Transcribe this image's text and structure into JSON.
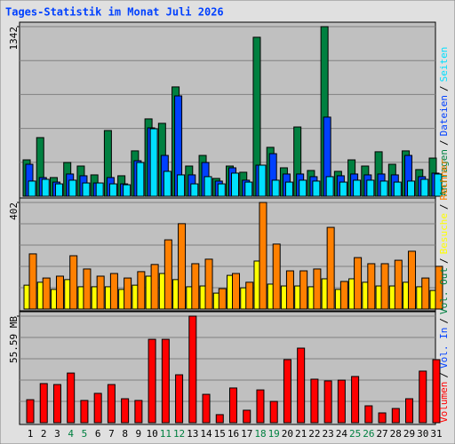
{
  "title": "Tages-Statistik im Monat Juli 2026",
  "legend_separator": "/",
  "categories": [
    "1",
    "2",
    "3",
    "4",
    "5",
    "6",
    "7",
    "8",
    "9",
    "10",
    "11",
    "12",
    "13",
    "14",
    "15",
    "16",
    "17",
    "18",
    "19",
    "20",
    "21",
    "22",
    "23",
    "24",
    "25",
    "26",
    "27",
    "28",
    "29",
    "30",
    "31"
  ],
  "category_colors": [
    "#000000",
    "#000000",
    "#000000",
    "#008040",
    "#008040",
    "#000000",
    "#000000",
    "#000000",
    "#000000",
    "#000000",
    "#008040",
    "#008040",
    "#000000",
    "#000000",
    "#000000",
    "#000000",
    "#000000",
    "#008040",
    "#008040",
    "#000000",
    "#000000",
    "#000000",
    "#000000",
    "#000000",
    "#008040",
    "#008040",
    "#000000",
    "#000000",
    "#000000",
    "#000000",
    "#000000"
  ],
  "chart_data": [
    {
      "type": "bar",
      "ylim": [
        0,
        1342
      ],
      "yticks": [
        1342
      ],
      "grid_divisions": 5,
      "series": [
        {
          "name": "Anfragen",
          "color": "#008040",
          "values": [
            288,
            464,
            148,
            267,
            239,
            169,
            520,
            162,
            359,
            612,
            577,
            865,
            239,
            323,
            141,
            239,
            190,
            1258,
            387,
            225,
            548,
            204,
            1342,
            197,
            288,
            239,
            352,
            253,
            359,
            211,
            302
          ]
        },
        {
          "name": "Dateien",
          "color": "#0040ff",
          "values": [
            253,
            148,
            112,
            176,
            162,
            105,
            148,
            98,
            281,
            541,
            323,
            794,
            169,
            267,
            120,
            225,
            127,
            246,
            337,
            176,
            176,
            155,
            626,
            162,
            176,
            169,
            176,
            169,
            323,
            155,
            183
          ]
        },
        {
          "name": "Seiten",
          "color": "#00e0ff",
          "values": [
            120,
            134,
            98,
            127,
            105,
            105,
            98,
            91,
            267,
            534,
            197,
            169,
            98,
            155,
            98,
            183,
            112,
            246,
            127,
            112,
            127,
            120,
            155,
            112,
            127,
            127,
            120,
            112,
            120,
            134,
            176
          ]
        }
      ]
    },
    {
      "type": "bar",
      "ylim": [
        0,
        402
      ],
      "yticks": [
        402
      ],
      "grid_divisions": 5,
      "series": [
        {
          "name": "Besuche",
          "color": "#ffff00",
          "values": [
            90,
            101,
            74,
            111,
            84,
            84,
            84,
            74,
            90,
            124,
            134,
            111,
            84,
            87,
            60,
            127,
            80,
            181,
            94,
            87,
            87,
            84,
            114,
            74,
            114,
            101,
            87,
            87,
            101,
            84,
            70
          ]
        },
        {
          "name": "Rechner",
          "color": "#ff8000",
          "values": [
            208,
            117,
            124,
            201,
            151,
            124,
            134,
            117,
            141,
            168,
            261,
            322,
            171,
            188,
            77,
            134,
            101,
            402,
            245,
            144,
            144,
            151,
            308,
            104,
            194,
            171,
            171,
            184,
            218,
            117,
            161
          ]
        }
      ]
    },
    {
      "type": "bar",
      "ylim": [
        0,
        55.59
      ],
      "yticks": [
        {
          "value": 55.59,
          "label": "55.59 MB"
        }
      ],
      "grid_divisions": 5,
      "series": [
        {
          "name": "Volumen",
          "color": "#ff0000",
          "values": [
            12.0,
            20.4,
            19.9,
            25.9,
            11.6,
            15.3,
            19.9,
            12.5,
            11.6,
            43.5,
            43.5,
            25.0,
            55.59,
            14.8,
            4.2,
            18.1,
            6.5,
            17.1,
            11.1,
            32.9,
            38.9,
            22.7,
            21.8,
            22.2,
            24.1,
            8.8,
            5.1,
            7.4,
            12.5,
            26.9,
            32.9
          ]
        }
      ],
      "legend_extra": [
        {
          "name": "Vol. In",
          "color": "#0040ff"
        },
        {
          "name": "Vol. Out",
          "color": "#008040"
        }
      ]
    }
  ]
}
